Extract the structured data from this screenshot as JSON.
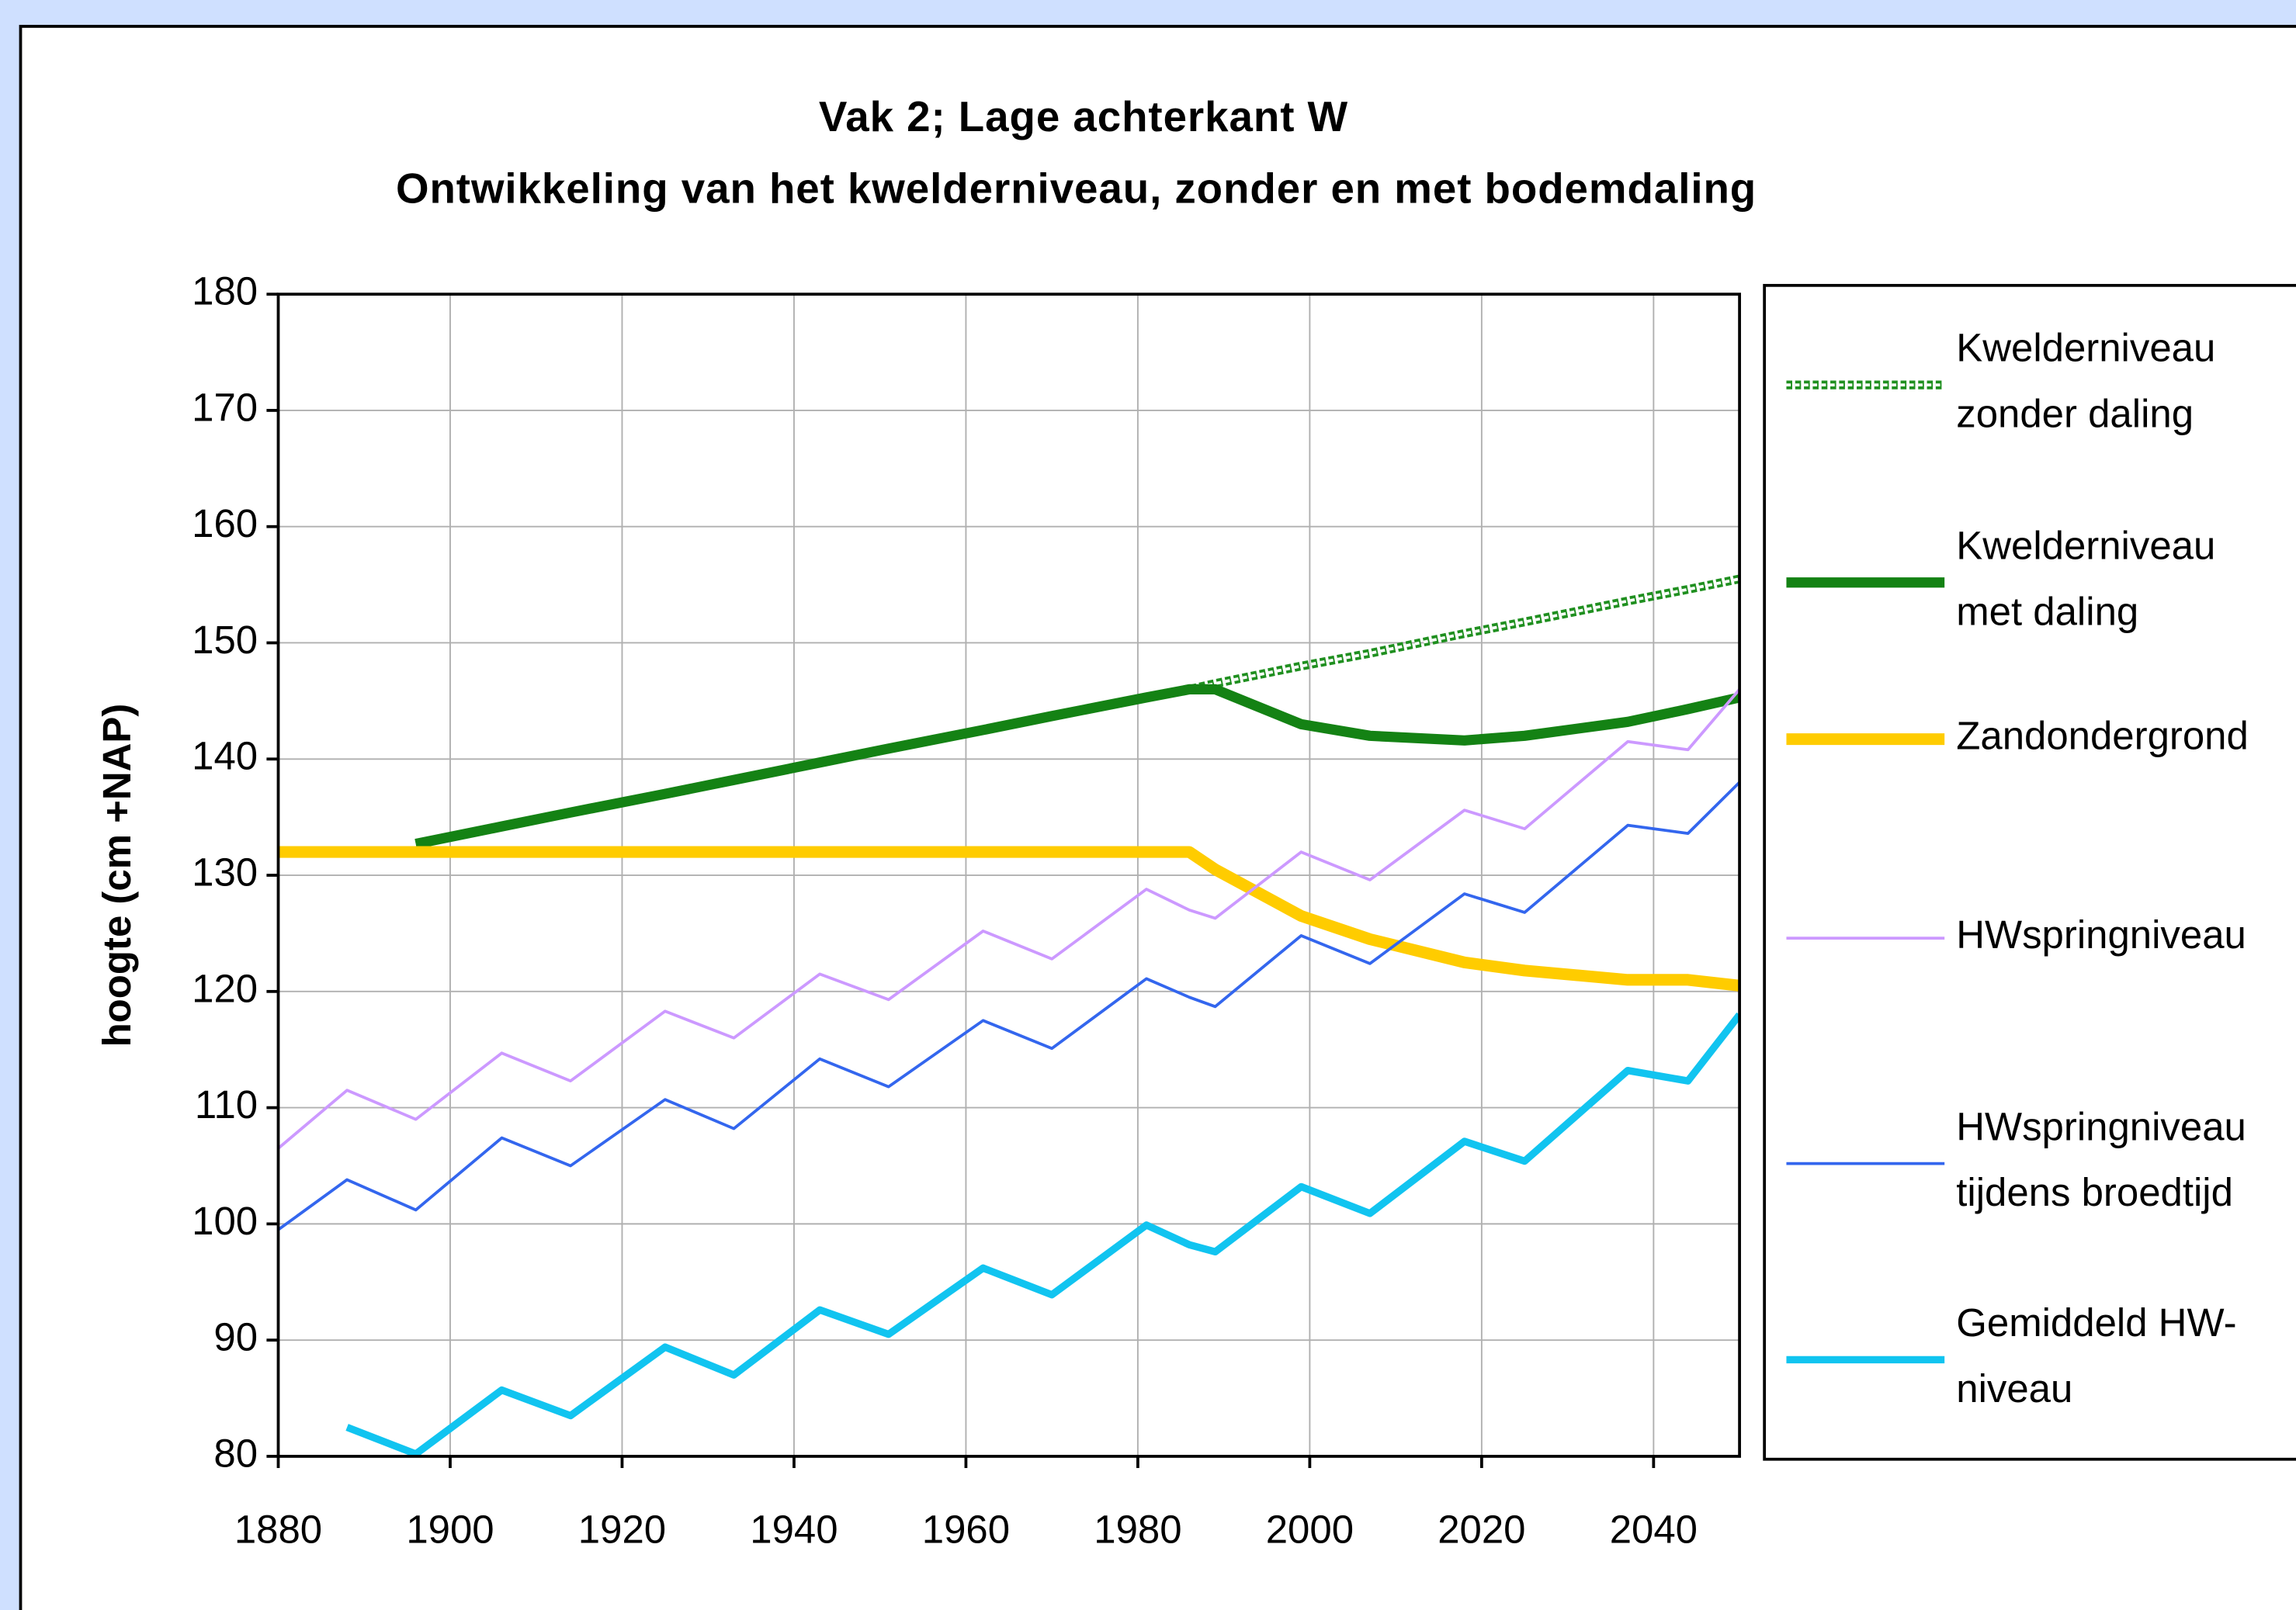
{
  "chart_data": {
    "type": "line",
    "title": "Vak 2; Lage achterkant W",
    "subtitle": "Ontwikkeling van het kwelderniveau, zonder en met bodemdaling",
    "y_label": "hoogte (cm +NAP)",
    "x": [
      1880,
      1888,
      1896,
      1906,
      1914,
      1925,
      1933,
      1943,
      1951,
      1962,
      1970,
      1981,
      1986,
      1989,
      1999,
      2007,
      2018,
      2025,
      2037,
      2044,
      2050
    ],
    "xlim": [
      1880,
      2050
    ],
    "xticks": [
      1880,
      1900,
      1920,
      1940,
      1960,
      1980,
      2000,
      2020,
      2040
    ],
    "ylim": [
      80,
      180
    ],
    "yticks": [
      80,
      90,
      100,
      110,
      120,
      130,
      140,
      150,
      160,
      170,
      180
    ],
    "grid": true,
    "legend": "right",
    "series": [
      {
        "name": "Kwelderniveau\nzonder daling",
        "color": "#1f8f1f",
        "values": [
          null,
          null,
          132.7,
          134.2,
          135.4,
          137.0,
          138.2,
          139.7,
          140.9,
          142.5,
          143.7,
          145.3,
          146.0,
          146.5,
          148.0,
          149.1,
          150.8,
          151.8,
          153.6,
          154.6,
          155.5
        ]
      },
      {
        "name": "Kwelderniveau\nmet daling",
        "color": "#148214",
        "values": [
          null,
          null,
          132.7,
          134.2,
          135.4,
          137.0,
          138.2,
          139.7,
          140.9,
          142.5,
          143.7,
          145.3,
          146.0,
          146.0,
          143.0,
          142.0,
          141.6,
          142.0,
          143.2,
          144.3,
          145.3
        ]
      },
      {
        "name": "Zandondergrond",
        "color": "#ffcc00",
        "values": [
          132,
          132,
          132,
          132,
          132,
          132,
          132,
          132,
          132,
          132,
          132,
          132,
          132,
          130.5,
          126.5,
          124.5,
          122.5,
          121.8,
          121.0,
          121.0,
          120.5
        ]
      },
      {
        "name": "HWspringniveau",
        "color": "#cc99ff",
        "values": [
          106.5,
          111.5,
          109,
          114.7,
          112.3,
          118.3,
          116,
          121.5,
          119.3,
          125.2,
          122.8,
          128.8,
          127,
          126.3,
          132,
          129.6,
          135.6,
          134,
          141.5,
          140.8,
          146
        ]
      },
      {
        "name": "HWspringniveau\ntijdens broedtijd",
        "color": "#3366ee",
        "values": [
          99.5,
          103.8,
          101.2,
          107.4,
          105,
          110.7,
          108.2,
          114.2,
          111.8,
          117.5,
          115.1,
          121.1,
          119.5,
          118.7,
          124.8,
          122.4,
          128.4,
          126.8,
          134.3,
          133.6,
          138
        ]
      },
      {
        "name": "Gemiddeld HW-\nniveau",
        "color": "#11c4f0",
        "values": [
          null,
          82.5,
          80.2,
          85.7,
          83.5,
          89.4,
          87,
          92.6,
          90.5,
          96.2,
          93.9,
          99.9,
          98.2,
          97.6,
          103.2,
          100.9,
          107.1,
          105.4,
          113.2,
          112.3,
          118
        ]
      }
    ]
  }
}
